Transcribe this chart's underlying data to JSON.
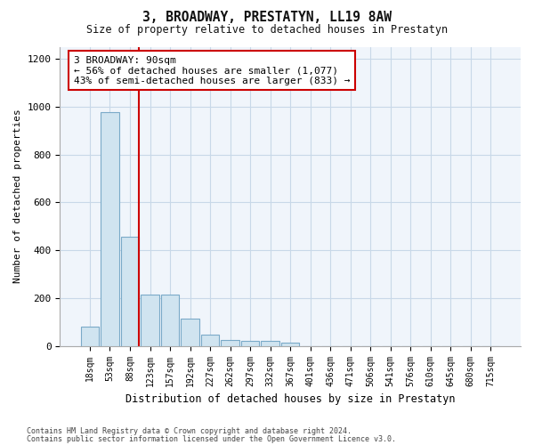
{
  "title": "3, BROADWAY, PRESTATYN, LL19 8AW",
  "subtitle": "Size of property relative to detached houses in Prestatyn",
  "xlabel": "Distribution of detached houses by size in Prestatyn",
  "ylabel": "Number of detached properties",
  "footer_line1": "Contains HM Land Registry data © Crown copyright and database right 2024.",
  "footer_line2": "Contains public sector information licensed under the Open Government Licence v3.0.",
  "bar_labels": [
    "18sqm",
    "53sqm",
    "88sqm",
    "123sqm",
    "157sqm",
    "192sqm",
    "227sqm",
    "262sqm",
    "297sqm",
    "332sqm",
    "367sqm",
    "401sqm",
    "436sqm",
    "471sqm",
    "506sqm",
    "541sqm",
    "576sqm",
    "610sqm",
    "645sqm",
    "680sqm",
    "715sqm"
  ],
  "bar_values": [
    80,
    975,
    455,
    215,
    215,
    115,
    48,
    25,
    22,
    20,
    12,
    0,
    0,
    0,
    0,
    0,
    0,
    0,
    0,
    0,
    0
  ],
  "bar_color": "#d0e4f0",
  "bar_edgecolor": "#7aaac8",
  "red_line_after_bar": 2,
  "annotation_line1": "3 BROADWAY: 90sqm",
  "annotation_line2": "← 56% of detached houses are smaller (1,077)",
  "annotation_line3": "43% of semi-detached houses are larger (833) →",
  "annotation_box_facecolor": "#ffffff",
  "annotation_box_edgecolor": "#cc0000",
  "ylim": [
    0,
    1250
  ],
  "yticks": [
    0,
    200,
    400,
    600,
    800,
    1000,
    1200
  ],
  "grid_color": "#c8d8e8",
  "background_color": "#ffffff",
  "axes_background": "#f0f5fb"
}
